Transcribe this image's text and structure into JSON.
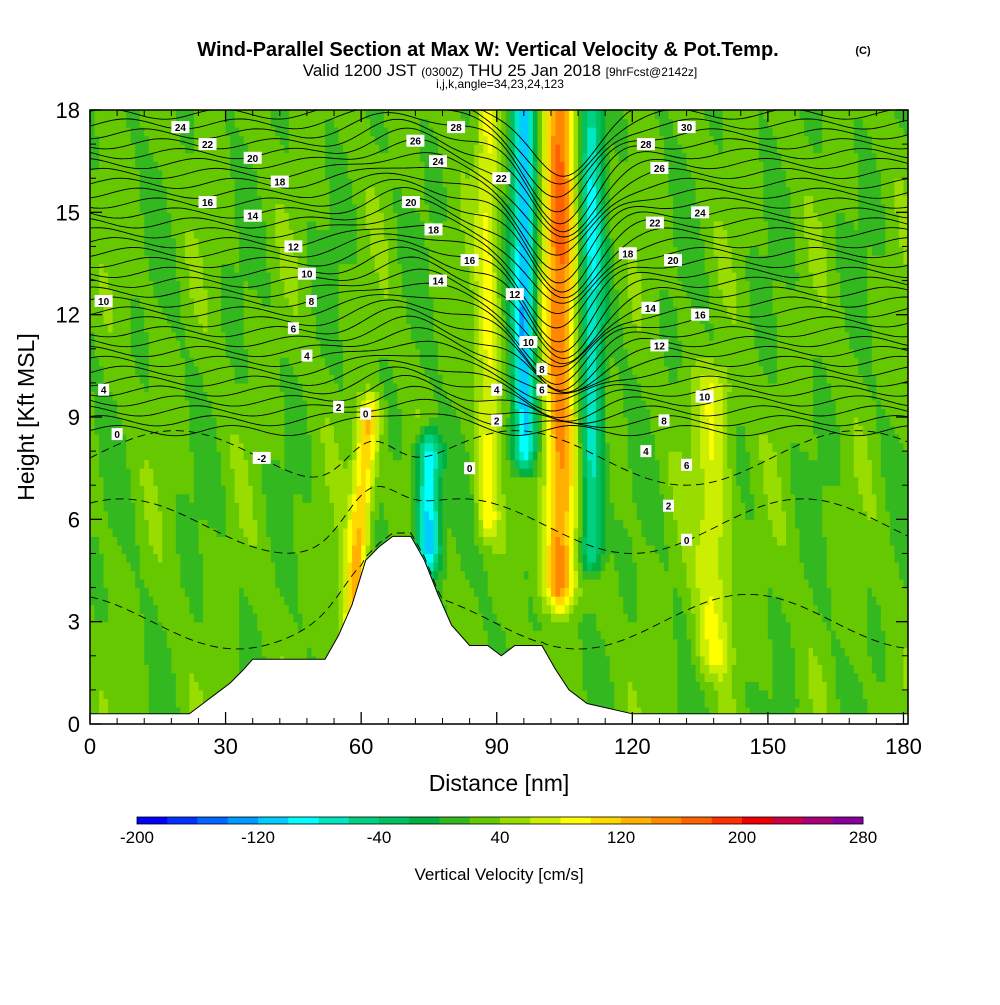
{
  "header": {
    "title": "Wind-Parallel Section at Max W: Vertical Velocity & Pot.Temp.",
    "title_unit": "(C)",
    "valid_prefix": "Valid 1200 JST",
    "valid_utc": "(0300Z)",
    "valid_date": "THU 25 Jan 2018",
    "forecast": "[9hrFcst@2142z]",
    "indices": "i,j,k,angle=34,23,24,123"
  },
  "chart_data": {
    "type": "heatmap",
    "title": "Wind-Parallel Section at Max W: Vertical Velocity & Pot.Temp.",
    "xlabel": "Distance [nm]",
    "ylabel": "Height [Kft MSL]",
    "xlim": [
      0,
      181
    ],
    "ylim": [
      0,
      18
    ],
    "x_ticks": [
      0,
      30,
      60,
      90,
      120,
      150,
      180
    ],
    "y_ticks": [
      0,
      3,
      6,
      9,
      12,
      15,
      18
    ],
    "x_tick_labels": [
      "0",
      "30",
      "60",
      "90",
      "120",
      "150",
      "180"
    ],
    "y_tick_labels": [
      "0",
      "3",
      "6",
      "9",
      "12",
      "15",
      "18"
    ],
    "colorbar": {
      "label": "Vertical Velocity [cm/s]",
      "min": -200,
      "max": 280,
      "step": 20,
      "tick_values": [
        -200,
        -120,
        -40,
        40,
        120,
        200,
        280
      ],
      "tick_labels": [
        "-200",
        "-120",
        "-40",
        "40",
        "120",
        "200",
        "280"
      ],
      "colors": [
        "#0000ff",
        "#0033ff",
        "#0066ff",
        "#0099ff",
        "#00ccff",
        "#00ffff",
        "#00e6c0",
        "#00d080",
        "#00c060",
        "#00b040",
        "#33b820",
        "#66c800",
        "#99dd00",
        "#ccee00",
        "#ffff00",
        "#ffd800",
        "#ffb000",
        "#ff8800",
        "#ff6000",
        "#ff3000",
        "#ee0000",
        "#cc0044",
        "#aa0077",
        "#880099"
      ]
    },
    "velocity_features": [
      {
        "name": "updraft core",
        "x_center": 104,
        "x_halfwidth": 3.5,
        "y_start": 4,
        "y_end": 18,
        "peak": 130,
        "lean": 0.0
      },
      {
        "name": "lee updraft",
        "x_center": 58,
        "x_halfwidth": 2.5,
        "y_start": 3,
        "y_end": 9,
        "peak": 100,
        "lean": 0.6
      },
      {
        "name": "downdraft",
        "x_center": 75,
        "x_halfwidth": 2.5,
        "y_start": 5,
        "y_end": 8,
        "peak": -140,
        "lean": 0.0
      },
      {
        "name": "downdraft upper",
        "x_center": 96,
        "x_halfwidth": 2.5,
        "y_start": 8,
        "y_end": 18,
        "peak": -140,
        "lean": 0.0
      },
      {
        "name": "downdraft right",
        "x_center": 111,
        "x_halfwidth": 2.5,
        "y_start": 5,
        "y_end": 18,
        "peak": -100,
        "lean": 0.0
      },
      {
        "name": "updraft band",
        "x_center": 88,
        "x_halfwidth": 2.5,
        "y_start": 6,
        "y_end": 18,
        "peak": 60,
        "lean": 0.0
      },
      {
        "name": "updraft band 2",
        "x_center": 138,
        "x_halfwidth": 4,
        "y_start": 2,
        "y_end": 10,
        "peak": 55,
        "lean": 0.0
      }
    ],
    "terrain": {
      "x": [
        0,
        22,
        25,
        28,
        31,
        34,
        36,
        45,
        52,
        55,
        58,
        61,
        64,
        67,
        71,
        74,
        77,
        80,
        84,
        88,
        91,
        94,
        100,
        103,
        106,
        110,
        120,
        181
      ],
      "height": [
        0.3,
        0.3,
        0.6,
        0.9,
        1.2,
        1.6,
        1.9,
        1.9,
        1.9,
        2.6,
        3.5,
        4.8,
        5.2,
        5.5,
        5.5,
        4.8,
        3.8,
        2.9,
        2.3,
        2.3,
        2.0,
        2.3,
        2.3,
        1.6,
        1.0,
        0.6,
        0.3,
        0.3
      ]
    },
    "theta_contour_labels": [
      {
        "text": "24",
        "x": 20,
        "y": 17.5
      },
      {
        "text": "22",
        "x": 26,
        "y": 17.0
      },
      {
        "text": "20",
        "x": 36,
        "y": 16.6
      },
      {
        "text": "18",
        "x": 42,
        "y": 15.9
      },
      {
        "text": "16",
        "x": 26,
        "y": 15.3
      },
      {
        "text": "14",
        "x": 36,
        "y": 14.9
      },
      {
        "text": "12",
        "x": 45,
        "y": 14.0
      },
      {
        "text": "10",
        "x": 48,
        "y": 13.2
      },
      {
        "text": "8",
        "x": 49,
        "y": 12.4
      },
      {
        "text": "6",
        "x": 45,
        "y": 11.6
      },
      {
        "text": "4",
        "x": 48,
        "y": 10.8
      },
      {
        "text": "2",
        "x": 55,
        "y": 9.3
      },
      {
        "text": "0",
        "x": 61,
        "y": 9.1
      },
      {
        "text": "10",
        "x": 3,
        "y": 12.4
      },
      {
        "text": "4",
        "x": 3,
        "y": 9.8
      },
      {
        "text": "0",
        "x": 6,
        "y": 8.5
      },
      {
        "text": "-2",
        "x": 38,
        "y": 7.8
      },
      {
        "text": "28",
        "x": 81,
        "y": 17.5
      },
      {
        "text": "26",
        "x": 72,
        "y": 17.1
      },
      {
        "text": "24",
        "x": 77,
        "y": 16.5
      },
      {
        "text": "22",
        "x": 91,
        "y": 16.0
      },
      {
        "text": "20",
        "x": 71,
        "y": 15.3
      },
      {
        "text": "18",
        "x": 76,
        "y": 14.5
      },
      {
        "text": "16",
        "x": 84,
        "y": 13.6
      },
      {
        "text": "14",
        "x": 77,
        "y": 13.0
      },
      {
        "text": "12",
        "x": 94,
        "y": 12.6
      },
      {
        "text": "10",
        "x": 97,
        "y": 11.2
      },
      {
        "text": "8",
        "x": 100,
        "y": 10.4
      },
      {
        "text": "6",
        "x": 100,
        "y": 9.8
      },
      {
        "text": "4",
        "x": 90,
        "y": 9.8
      },
      {
        "text": "2",
        "x": 90,
        "y": 8.9
      },
      {
        "text": "0",
        "x": 84,
        "y": 7.5
      },
      {
        "text": "30",
        "x": 132,
        "y": 17.5
      },
      {
        "text": "28",
        "x": 123,
        "y": 17.0
      },
      {
        "text": "26",
        "x": 126,
        "y": 16.3
      },
      {
        "text": "24",
        "x": 135,
        "y": 15.0
      },
      {
        "text": "22",
        "x": 125,
        "y": 14.7
      },
      {
        "text": "18",
        "x": 119,
        "y": 13.8
      },
      {
        "text": "20",
        "x": 129,
        "y": 13.6
      },
      {
        "text": "14",
        "x": 124,
        "y": 12.2
      },
      {
        "text": "16",
        "x": 135,
        "y": 12.0
      },
      {
        "text": "12",
        "x": 126,
        "y": 11.1
      },
      {
        "text": "10",
        "x": 136,
        "y": 9.6
      },
      {
        "text": "8",
        "x": 127,
        "y": 8.9
      },
      {
        "text": "4",
        "x": 123,
        "y": 8.0
      },
      {
        "text": "6",
        "x": 132,
        "y": 7.6
      },
      {
        "text": "2",
        "x": 128,
        "y": 6.4
      },
      {
        "text": "0",
        "x": 132,
        "y": 5.4
      }
    ]
  }
}
